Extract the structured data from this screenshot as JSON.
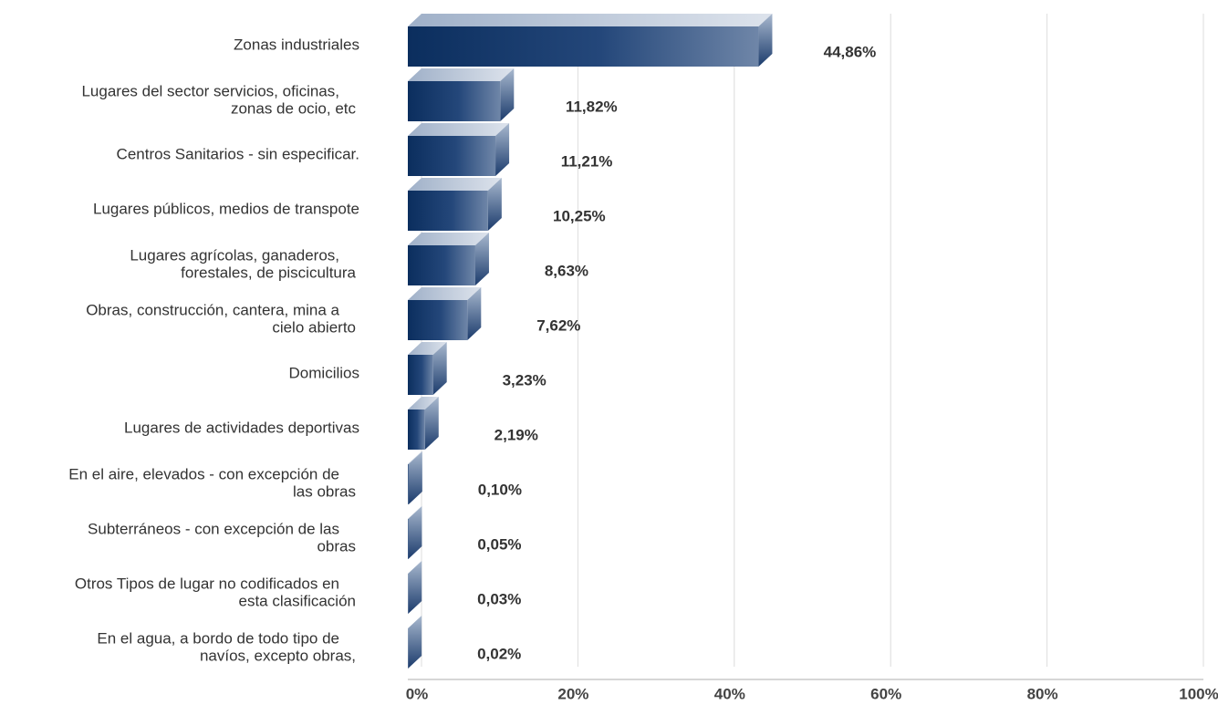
{
  "chart_data": {
    "type": "bar",
    "orientation": "horizontal",
    "categories": [
      [
        "Zonas industriales"
      ],
      [
        "Lugares del sector servicios, oficinas,",
        "zonas de ocio, etc"
      ],
      [
        "Centros Sanitarios - sin especificar."
      ],
      [
        "Lugares públicos, medios de transpote"
      ],
      [
        "Lugares agrícolas, ganaderos,",
        "forestales, de piscicultura"
      ],
      [
        "Obras, construcción, cantera, mina a",
        "cielo abierto"
      ],
      [
        "Domicilios"
      ],
      [
        "Lugares de actividades deportivas"
      ],
      [
        "En el aire, elevados - con excepción de",
        "las obras"
      ],
      [
        "Subterráneos - con excepción de las",
        "obras"
      ],
      [
        "Otros Tipos de lugar no codificados en",
        "esta clasificación"
      ],
      [
        "En el agua, a bordo de todo tipo de",
        "navíos, excepto obras,"
      ]
    ],
    "values": [
      44.86,
      11.82,
      11.21,
      10.25,
      8.63,
      7.62,
      3.23,
      2.19,
      0.1,
      0.05,
      0.03,
      0.02
    ],
    "value_labels": [
      "44,86%",
      "11,82%",
      "11,21%",
      "10,25%",
      "8,63%",
      "7,62%",
      "3,23%",
      "2,19%",
      "0,10%",
      "0,05%",
      "0,03%",
      "0,02%"
    ],
    "color": "#0b2e5e",
    "xlim": [
      0,
      100
    ],
    "xticks": [
      {
        "value": 0,
        "label": "0%"
      },
      {
        "value": 20,
        "label": "20%"
      },
      {
        "value": 40,
        "label": "40%"
      },
      {
        "value": 60,
        "label": "60%"
      },
      {
        "value": 80,
        "label": "80%"
      },
      {
        "value": 100,
        "label": "100%"
      }
    ],
    "grid": true
  }
}
